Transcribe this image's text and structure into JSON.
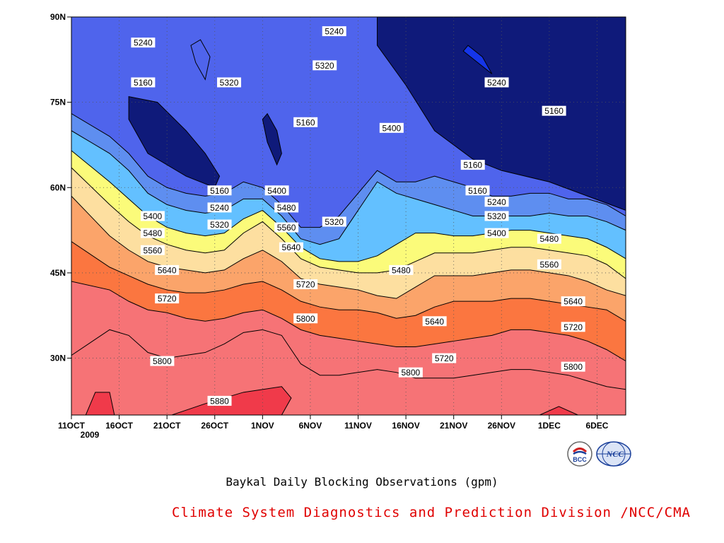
{
  "chart_data": {
    "type": "heatmap",
    "caption": "Baykal Daily Blocking Observations (gpm)",
    "x_ticks": [
      "11OCT",
      "16OCT",
      "21OCT",
      "26OCT",
      "1NOV",
      "6NOV",
      "11NOV",
      "16NOV",
      "21NOV",
      "26NOV",
      "1DEC",
      "6DEC"
    ],
    "x_year": "2009",
    "y_ticks": [
      "90N",
      "75N",
      "60N",
      "45N",
      "30N"
    ],
    "y_tick_values": [
      90,
      75,
      60,
      45,
      30
    ],
    "ylim": [
      20,
      90
    ],
    "xlim_days": [
      0,
      58
    ],
    "levels": [
      5160,
      5240,
      5320,
      5400,
      5480,
      5560,
      5640,
      5720,
      5800,
      5880
    ],
    "level_colors": [
      "#0f1a7a",
      "#1535e8",
      "#4f64ec",
      "#5e8ef0",
      "#63c0ff",
      "#fbfb7a",
      "#fddfa0",
      "#fba46a",
      "#fb7640",
      "#f67376",
      "#f03a4a"
    ],
    "series": [
      {
        "name": "5160",
        "x": [
          0,
          4,
          6,
          8,
          10,
          12,
          14,
          16,
          18,
          20,
          22,
          24,
          26,
          28,
          30,
          32,
          34,
          36,
          38,
          40,
          42,
          44,
          46,
          48,
          50,
          52,
          54,
          56,
          58
        ],
        "y": [
          91,
          91,
          91,
          91,
          91,
          91,
          91,
          91,
          91,
          91,
          91,
          91,
          91,
          91,
          91,
          91,
          91,
          91,
          91,
          91,
          91,
          91,
          91,
          91,
          91,
          91,
          91,
          91,
          91
        ]
      },
      {
        "name": "5160",
        "x": [
          0,
          4,
          6,
          8,
          10,
          12,
          14,
          16,
          18,
          20,
          22,
          24,
          26,
          28,
          30,
          32,
          34,
          36,
          38,
          40,
          42,
          44,
          46,
          48,
          50,
          52,
          54,
          56,
          58
        ],
        "y": [
          91,
          91,
          91,
          91,
          91,
          91,
          91,
          91,
          91,
          91,
          91,
          91,
          91,
          91,
          91,
          91,
          91,
          91,
          91,
          91,
          91,
          91,
          91,
          91,
          91,
          91,
          91,
          91,
          91
        ]
      },
      {
        "name": "5240",
        "x": [
          0,
          4,
          6,
          8,
          10,
          12,
          14,
          16,
          18,
          20,
          22,
          24,
          26,
          28,
          30,
          32,
          34,
          36,
          38,
          40,
          42,
          44,
          46,
          48,
          50,
          52,
          54,
          56,
          58
        ],
        "y": [
          91,
          91,
          91,
          91,
          91,
          91,
          91,
          91,
          91,
          91,
          91,
          91,
          91,
          91,
          91,
          91,
          91,
          91,
          91,
          91,
          91,
          91,
          91,
          91,
          91,
          91,
          91,
          91,
          91
        ]
      },
      {
        "name": "5320",
        "x": [
          0,
          4,
          6,
          8,
          10,
          12,
          14,
          16,
          18,
          20,
          22,
          24,
          26,
          28,
          30,
          32,
          34,
          36,
          38,
          40,
          42,
          44,
          46,
          48,
          50,
          52,
          54,
          56,
          58
        ],
        "y": [
          73,
          69,
          66,
          62,
          60,
          59,
          58.5,
          59,
          61,
          60,
          57,
          53,
          53,
          55,
          59,
          63,
          61,
          61,
          62,
          61,
          60,
          58.5,
          58.5,
          59,
          59,
          58,
          58,
          57,
          55
        ]
      },
      {
        "name": "5400",
        "x": [
          0,
          4,
          6,
          8,
          10,
          12,
          14,
          16,
          18,
          20,
          22,
          24,
          26,
          28,
          30,
          32,
          34,
          36,
          38,
          40,
          42,
          44,
          46,
          48,
          50,
          52,
          54,
          56,
          58
        ],
        "y": [
          70,
          66,
          63,
          59,
          57,
          56,
          55.5,
          56,
          58,
          58,
          55,
          51,
          50,
          51,
          56,
          61,
          59,
          58,
          57,
          56,
          55,
          55,
          55,
          55,
          55.5,
          55,
          55,
          54,
          52.5
        ]
      },
      {
        "name": "5480",
        "x": [
          0,
          4,
          6,
          8,
          10,
          12,
          14,
          16,
          18,
          20,
          22,
          24,
          26,
          28,
          30,
          32,
          34,
          36,
          38,
          40,
          42,
          44,
          46,
          48,
          50,
          52,
          54,
          56,
          58
        ],
        "y": [
          66.5,
          61,
          58,
          55,
          53,
          52,
          51.5,
          52,
          54.5,
          56,
          53,
          49.5,
          47.5,
          47,
          47,
          48,
          50,
          52,
          52,
          51.5,
          51.5,
          52,
          52.5,
          52.5,
          52,
          51.5,
          51,
          49.5,
          47.5
        ]
      },
      {
        "name": "5560",
        "x": [
          0,
          4,
          6,
          8,
          10,
          12,
          14,
          16,
          18,
          20,
          22,
          24,
          26,
          28,
          30,
          32,
          34,
          36,
          38,
          40,
          42,
          44,
          46,
          48,
          50,
          52,
          54,
          56,
          58
        ],
        "y": [
          63.5,
          57,
          54,
          51.5,
          50,
          49,
          48.5,
          49,
          52,
          54,
          51,
          47.5,
          46,
          45.5,
          45,
          45,
          45.5,
          47,
          48.5,
          48.5,
          48.5,
          49,
          49.5,
          49.5,
          49,
          48.5,
          48,
          46.5,
          44
        ]
      },
      {
        "name": "5640",
        "x": [
          0,
          4,
          6,
          8,
          10,
          12,
          14,
          16,
          18,
          20,
          22,
          24,
          26,
          28,
          30,
          32,
          34,
          36,
          38,
          40,
          42,
          44,
          46,
          48,
          50,
          52,
          54,
          56,
          58
        ],
        "y": [
          58.5,
          51.5,
          49,
          47,
          46,
          45.5,
          45,
          45.5,
          47.5,
          49,
          47,
          44,
          43,
          42.5,
          42,
          41,
          40.5,
          42.5,
          44.5,
          44.5,
          44.5,
          45,
          45.5,
          45.5,
          45,
          44.5,
          43.5,
          42,
          41
        ]
      },
      {
        "name": "5720",
        "x": [
          0,
          4,
          6,
          8,
          10,
          12,
          14,
          16,
          18,
          20,
          22,
          24,
          26,
          28,
          30,
          32,
          34,
          36,
          38,
          40,
          42,
          44,
          46,
          48,
          50,
          52,
          54,
          56,
          58
        ],
        "y": [
          50.5,
          46,
          44.5,
          43,
          42,
          41.5,
          41.5,
          42,
          43,
          43.5,
          42,
          40,
          39,
          38.5,
          38.5,
          38,
          37,
          37.5,
          39,
          40,
          40,
          40,
          40.5,
          40.5,
          40,
          39.5,
          39,
          38.5,
          36.5
        ]
      },
      {
        "name": "5800",
        "x": [
          0,
          4,
          6,
          8,
          10,
          12,
          14,
          16,
          18,
          20,
          22,
          24,
          26,
          28,
          30,
          32,
          34,
          36,
          38,
          40,
          42,
          44,
          46,
          48,
          50,
          52,
          54,
          56,
          58
        ],
        "y": [
          43.5,
          42,
          40,
          38.5,
          38,
          37,
          36.5,
          37,
          38,
          38.5,
          37,
          35,
          34,
          33.5,
          33,
          32.5,
          32,
          32,
          32.5,
          33,
          33.5,
          34,
          35,
          35,
          34.5,
          34,
          33,
          31.5,
          29.5
        ]
      },
      {
        "name": "5880",
        "x": [
          0,
          4,
          6,
          8,
          10,
          12,
          14,
          16,
          18,
          20,
          22,
          24,
          26,
          28,
          30,
          32,
          34,
          36,
          38,
          40,
          42,
          44,
          46,
          48,
          50,
          52,
          54,
          56,
          58
        ],
        "y": [
          30.5,
          35,
          34,
          31,
          30,
          30.5,
          31,
          32.5,
          34.5,
          35,
          34,
          29,
          27,
          27,
          27.5,
          28,
          27.5,
          26.5,
          26.5,
          26.5,
          27,
          27.5,
          28,
          28,
          27.5,
          27,
          26,
          25,
          24.5
        ]
      }
    ],
    "cold_pools": [
      {
        "level": 5160,
        "x": [
          6.0,
          9.0,
          12.0,
          14.0,
          15.5,
          15.0,
          12.0,
          8.0,
          6.0
        ],
        "y": [
          76,
          75,
          70,
          66,
          62,
          60,
          62,
          66,
          72
        ]
      },
      {
        "level": 5160,
        "x": [
          20.0,
          20.5,
          21.5,
          22.0,
          21.5,
          20.5,
          20.0
        ],
        "y": [
          72,
          68,
          64,
          66,
          70,
          73,
          72
        ]
      },
      {
        "level": 5160,
        "x": [
          32.0,
          35.0,
          40.0,
          45.0,
          50.0,
          55.0,
          58.0,
          58.0,
          50.0,
          45.0,
          42.0,
          38.0,
          35.0,
          32.0
        ],
        "y": [
          91,
          91,
          91,
          91,
          91,
          91,
          91,
          56,
          61,
          63,
          65,
          70,
          78,
          85
        ]
      },
      {
        "level": 5320,
        "x": [
          12.5,
          13.0,
          14.0,
          14.5,
          13.5,
          12.5
        ],
        "y": [
          85,
          82,
          79,
          83,
          86,
          85
        ]
      },
      {
        "level": 5240,
        "x": [
          41.0,
          42.5,
          44.0,
          43.0,
          41.5,
          41.0
        ],
        "y": [
          84,
          82,
          80,
          83,
          85,
          84
        ]
      },
      {
        "level": 5880,
        "x": [
          1.5,
          2.5,
          4.0,
          4.5,
          1.5
        ],
        "y": [
          20,
          24,
          24,
          20,
          20
        ]
      },
      {
        "level": 5880,
        "x": [
          10.5,
          14.0,
          18.0,
          22.0,
          23.0,
          22.0,
          10.5
        ],
        "y": [
          20,
          22,
          24,
          25,
          23,
          20,
          20
        ]
      },
      {
        "level": 5880,
        "x": [
          49.0,
          51.0,
          53.0,
          49.0
        ],
        "y": [
          20,
          21.5,
          20,
          20
        ]
      }
    ],
    "contour_labels": [
      {
        "text": "5240",
        "x": 7.5,
        "y": 85.5
      },
      {
        "text": "5160",
        "x": 7.5,
        "y": 78.5
      },
      {
        "text": "5320",
        "x": 16.5,
        "y": 78.5
      },
      {
        "text": "5240",
        "x": 27.5,
        "y": 87.5
      },
      {
        "text": "5320",
        "x": 26.5,
        "y": 81.5
      },
      {
        "text": "5160",
        "x": 24.5,
        "y": 71.5
      },
      {
        "text": "5400",
        "x": 33.5,
        "y": 70.5
      },
      {
        "text": "5240",
        "x": 44.5,
        "y": 78.5
      },
      {
        "text": "5160",
        "x": 50.5,
        "y": 73.5
      },
      {
        "text": "5160",
        "x": 42.0,
        "y": 64.0
      },
      {
        "text": "5160",
        "x": 15.5,
        "y": 59.5
      },
      {
        "text": "5400",
        "x": 21.5,
        "y": 59.5
      },
      {
        "text": "5240",
        "x": 15.5,
        "y": 56.5
      },
      {
        "text": "5480",
        "x": 22.5,
        "y": 56.5
      },
      {
        "text": "5320",
        "x": 15.5,
        "y": 53.5
      },
      {
        "text": "5560",
        "x": 22.5,
        "y": 53.0
      },
      {
        "text": "5320",
        "x": 27.5,
        "y": 54.0
      },
      {
        "text": "5400",
        "x": 8.5,
        "y": 55.0
      },
      {
        "text": "5480",
        "x": 8.5,
        "y": 52.0
      },
      {
        "text": "5560",
        "x": 8.5,
        "y": 49.0
      },
      {
        "text": "5640",
        "x": 10.0,
        "y": 45.5
      },
      {
        "text": "5640",
        "x": 23.0,
        "y": 49.5
      },
      {
        "text": "5720",
        "x": 10.0,
        "y": 40.5
      },
      {
        "text": "5720",
        "x": 24.5,
        "y": 43.0
      },
      {
        "text": "5800",
        "x": 24.5,
        "y": 37.0
      },
      {
        "text": "5480",
        "x": 34.5,
        "y": 45.5
      },
      {
        "text": "5640",
        "x": 38.0,
        "y": 36.5
      },
      {
        "text": "5720",
        "x": 39.0,
        "y": 30.0
      },
      {
        "text": "5800",
        "x": 35.5,
        "y": 27.5
      },
      {
        "text": "5880",
        "x": 15.5,
        "y": 22.5
      },
      {
        "text": "5800",
        "x": 9.5,
        "y": 29.5
      },
      {
        "text": "5240",
        "x": 44.5,
        "y": 57.5
      },
      {
        "text": "5320",
        "x": 44.5,
        "y": 55.0
      },
      {
        "text": "5400",
        "x": 44.5,
        "y": 52.0
      },
      {
        "text": "5480",
        "x": 50.0,
        "y": 51.0
      },
      {
        "text": "5560",
        "x": 50.0,
        "y": 46.5
      },
      {
        "text": "5640",
        "x": 52.5,
        "y": 40.0
      },
      {
        "text": "5720",
        "x": 52.5,
        "y": 35.5
      },
      {
        "text": "5800",
        "x": 52.5,
        "y": 28.5
      },
      {
        "text": "5160",
        "x": 42.5,
        "y": 59.5
      }
    ]
  },
  "caption": "Baykal Daily Blocking Observations (gpm)",
  "credit": "Climate System Diagnostics and Prediction Division /NCC/CMA",
  "logos": [
    {
      "name": "bcc-logo",
      "text": "BCC",
      "color": "#1a3f9a"
    },
    {
      "name": "ncc-logo",
      "text": "NCC",
      "color": "#1a3f9a"
    }
  ]
}
